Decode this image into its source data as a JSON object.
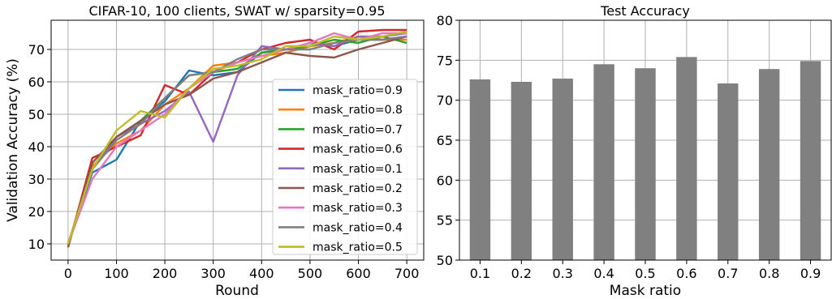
{
  "chart_data": [
    {
      "type": "line",
      "title": "CIFAR-10, 100 clients, SWAT w/ sparsity=0.95",
      "xlabel": "Round",
      "ylabel": "Validation Accuracy (%)",
      "xlim": [
        -35,
        735
      ],
      "ylim": [
        5,
        79
      ],
      "xticks": [
        0,
        100,
        200,
        300,
        400,
        500,
        600,
        700
      ],
      "yticks": [
        10,
        20,
        30,
        40,
        50,
        60,
        70
      ],
      "grid": true,
      "legend_loc": "lower right",
      "x": [
        0,
        50,
        100,
        150,
        200,
        250,
        300,
        350,
        400,
        450,
        500,
        550,
        600,
        650,
        700
      ],
      "series": [
        {
          "name": "mask_ratio=0.9",
          "color": "#1f77b4",
          "values": [
            10,
            32,
            36,
            48,
            54,
            63.5,
            62,
            63,
            69,
            70,
            72,
            71,
            73,
            73,
            74
          ]
        },
        {
          "name": "mask_ratio=0.8",
          "color": "#ff7f0e",
          "values": [
            10,
            34,
            41,
            45,
            53,
            58,
            65,
            66,
            68,
            69,
            71,
            72,
            74,
            73,
            73
          ]
        },
        {
          "name": "mask_ratio=0.7",
          "color": "#2ca02c",
          "values": [
            10,
            33,
            43,
            48,
            55,
            62,
            63,
            64,
            69,
            70,
            71,
            73,
            72,
            74,
            72
          ]
        },
        {
          "name": "mask_ratio=0.6",
          "color": "#d62728",
          "values": [
            9,
            36.5,
            40,
            43.5,
            59,
            56,
            63,
            66,
            70,
            72,
            73,
            70,
            75.5,
            76,
            76
          ]
        },
        {
          "name": "mask_ratio=0.1",
          "color": "#9467bd",
          "values": [
            10,
            33,
            43,
            47,
            51,
            57,
            41.5,
            62,
            71,
            70,
            72,
            71,
            74,
            74,
            75
          ]
        },
        {
          "name": "mask_ratio=0.2",
          "color": "#8c564b",
          "values": [
            9,
            35,
            43,
            48,
            53,
            56,
            61,
            63,
            66,
            69,
            68,
            67.5,
            70,
            72,
            74
          ]
        },
        {
          "name": "mask_ratio=0.3",
          "color": "#e377c2",
          "values": [
            10,
            30,
            40,
            45,
            50,
            58,
            63,
            66,
            68,
            70,
            72,
            75,
            73,
            75,
            75
          ]
        },
        {
          "name": "mask_ratio=0.4",
          "color": "#7f7f7f",
          "values": [
            10,
            33,
            42,
            47,
            55,
            62,
            63,
            67,
            70,
            70,
            70,
            72,
            73,
            73,
            74
          ]
        },
        {
          "name": "mask_ratio=0.5",
          "color": "#bcbd22",
          "values": [
            10,
            33,
            45,
            51,
            49,
            58,
            64,
            65,
            67,
            71,
            71,
            74,
            73,
            74,
            75.5
          ]
        }
      ]
    },
    {
      "type": "bar",
      "title": "Test Accuracy",
      "xlabel": "Mask ratio",
      "ylabel": "",
      "ylim": [
        50,
        80
      ],
      "yticks": [
        50,
        55,
        60,
        65,
        70,
        75,
        80
      ],
      "grid": true,
      "bar_color": "#808080",
      "categories": [
        "0.1",
        "0.2",
        "0.3",
        "0.4",
        "0.5",
        "0.6",
        "0.7",
        "0.8",
        "0.9"
      ],
      "values": [
        72.6,
        72.3,
        72.7,
        74.5,
        74.0,
        75.4,
        72.1,
        73.9,
        74.9
      ]
    }
  ]
}
